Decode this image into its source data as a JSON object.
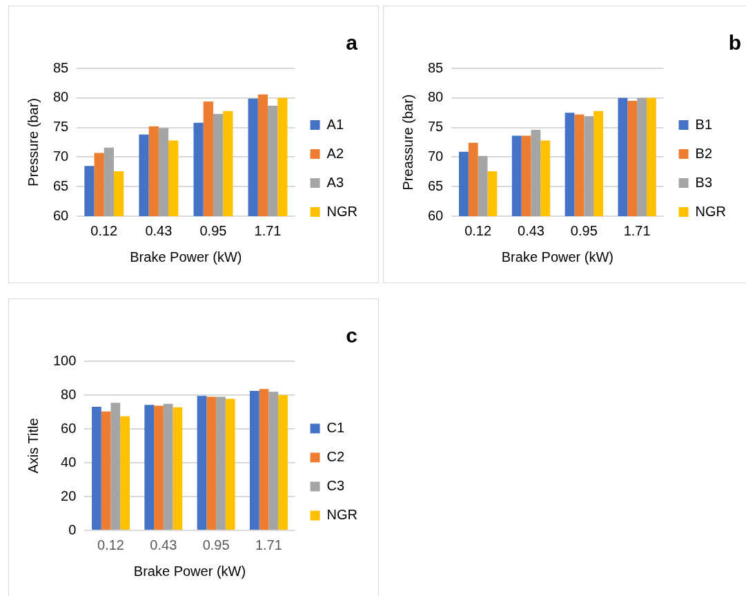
{
  "chart_data": [
    {
      "type": "bar",
      "annotations": [
        "a"
      ],
      "xlabel": "Brake Power (kW)",
      "ylabel": "Pressure (bar)",
      "categories": [
        "0.12",
        "0.43",
        "0.95",
        "1.71"
      ],
      "ylim": [
        60,
        85
      ],
      "yticks": [
        60,
        65,
        70,
        75,
        80,
        85
      ],
      "grid": "y",
      "legend": "right",
      "series": [
        {
          "name": "A1",
          "color": "#4472c4",
          "values": [
            68.5,
            73.8,
            75.8,
            79.9
          ]
        },
        {
          "name": "A2",
          "color": "#ed7d31",
          "values": [
            70.7,
            75.2,
            79.4,
            80.6
          ]
        },
        {
          "name": "A3",
          "color": "#a5a5a5",
          "values": [
            71.6,
            74.9,
            77.3,
            78.7
          ]
        },
        {
          "name": "NGR",
          "color": "#ffc000",
          "values": [
            67.6,
            72.8,
            77.8,
            80
          ]
        }
      ]
    },
    {
      "type": "bar",
      "annotations": [
        "b"
      ],
      "xlabel": "Brake Power (kW)",
      "ylabel": "Preassure (bar)",
      "categories": [
        "0.12",
        "0.43",
        "0.95",
        "1.71"
      ],
      "ylim": [
        60,
        85
      ],
      "yticks": [
        60,
        65,
        70,
        75,
        80,
        85
      ],
      "grid": "y",
      "legend": "right",
      "series": [
        {
          "name": "B1",
          "color": "#4472c4",
          "values": [
            70.9,
            73.6,
            77.5,
            80
          ]
        },
        {
          "name": "B2",
          "color": "#ed7d31",
          "values": [
            72.4,
            73.6,
            77.2,
            79.5
          ]
        },
        {
          "name": "B3",
          "color": "#a5a5a5",
          "values": [
            70.2,
            74.6,
            76.9,
            80
          ]
        },
        {
          "name": "NGR",
          "color": "#ffc000",
          "values": [
            67.6,
            72.8,
            77.8,
            80
          ]
        }
      ]
    },
    {
      "type": "bar",
      "annotations": [
        "c"
      ],
      "xlabel": "Brake Power (kW)",
      "ylabel": "Axis Title",
      "categories": [
        "0.12",
        "0.43",
        "0.95",
        "1.71"
      ],
      "ylim": [
        0,
        100
      ],
      "yticks": [
        0,
        20,
        40,
        60,
        80,
        100
      ],
      "grid": "y",
      "legend": "right",
      "series": [
        {
          "name": "C1",
          "color": "#4472c4",
          "values": [
            73.1,
            74.2,
            79.5,
            82.5
          ]
        },
        {
          "name": "C2",
          "color": "#ed7d31",
          "values": [
            70.3,
            73.7,
            79,
            83.6
          ]
        },
        {
          "name": "C3",
          "color": "#a5a5a5",
          "values": [
            75.4,
            74.8,
            79,
            81.9
          ]
        },
        {
          "name": "NGR",
          "color": "#ffc000",
          "values": [
            67.5,
            72.8,
            77.8,
            80
          ]
        }
      ]
    }
  ]
}
